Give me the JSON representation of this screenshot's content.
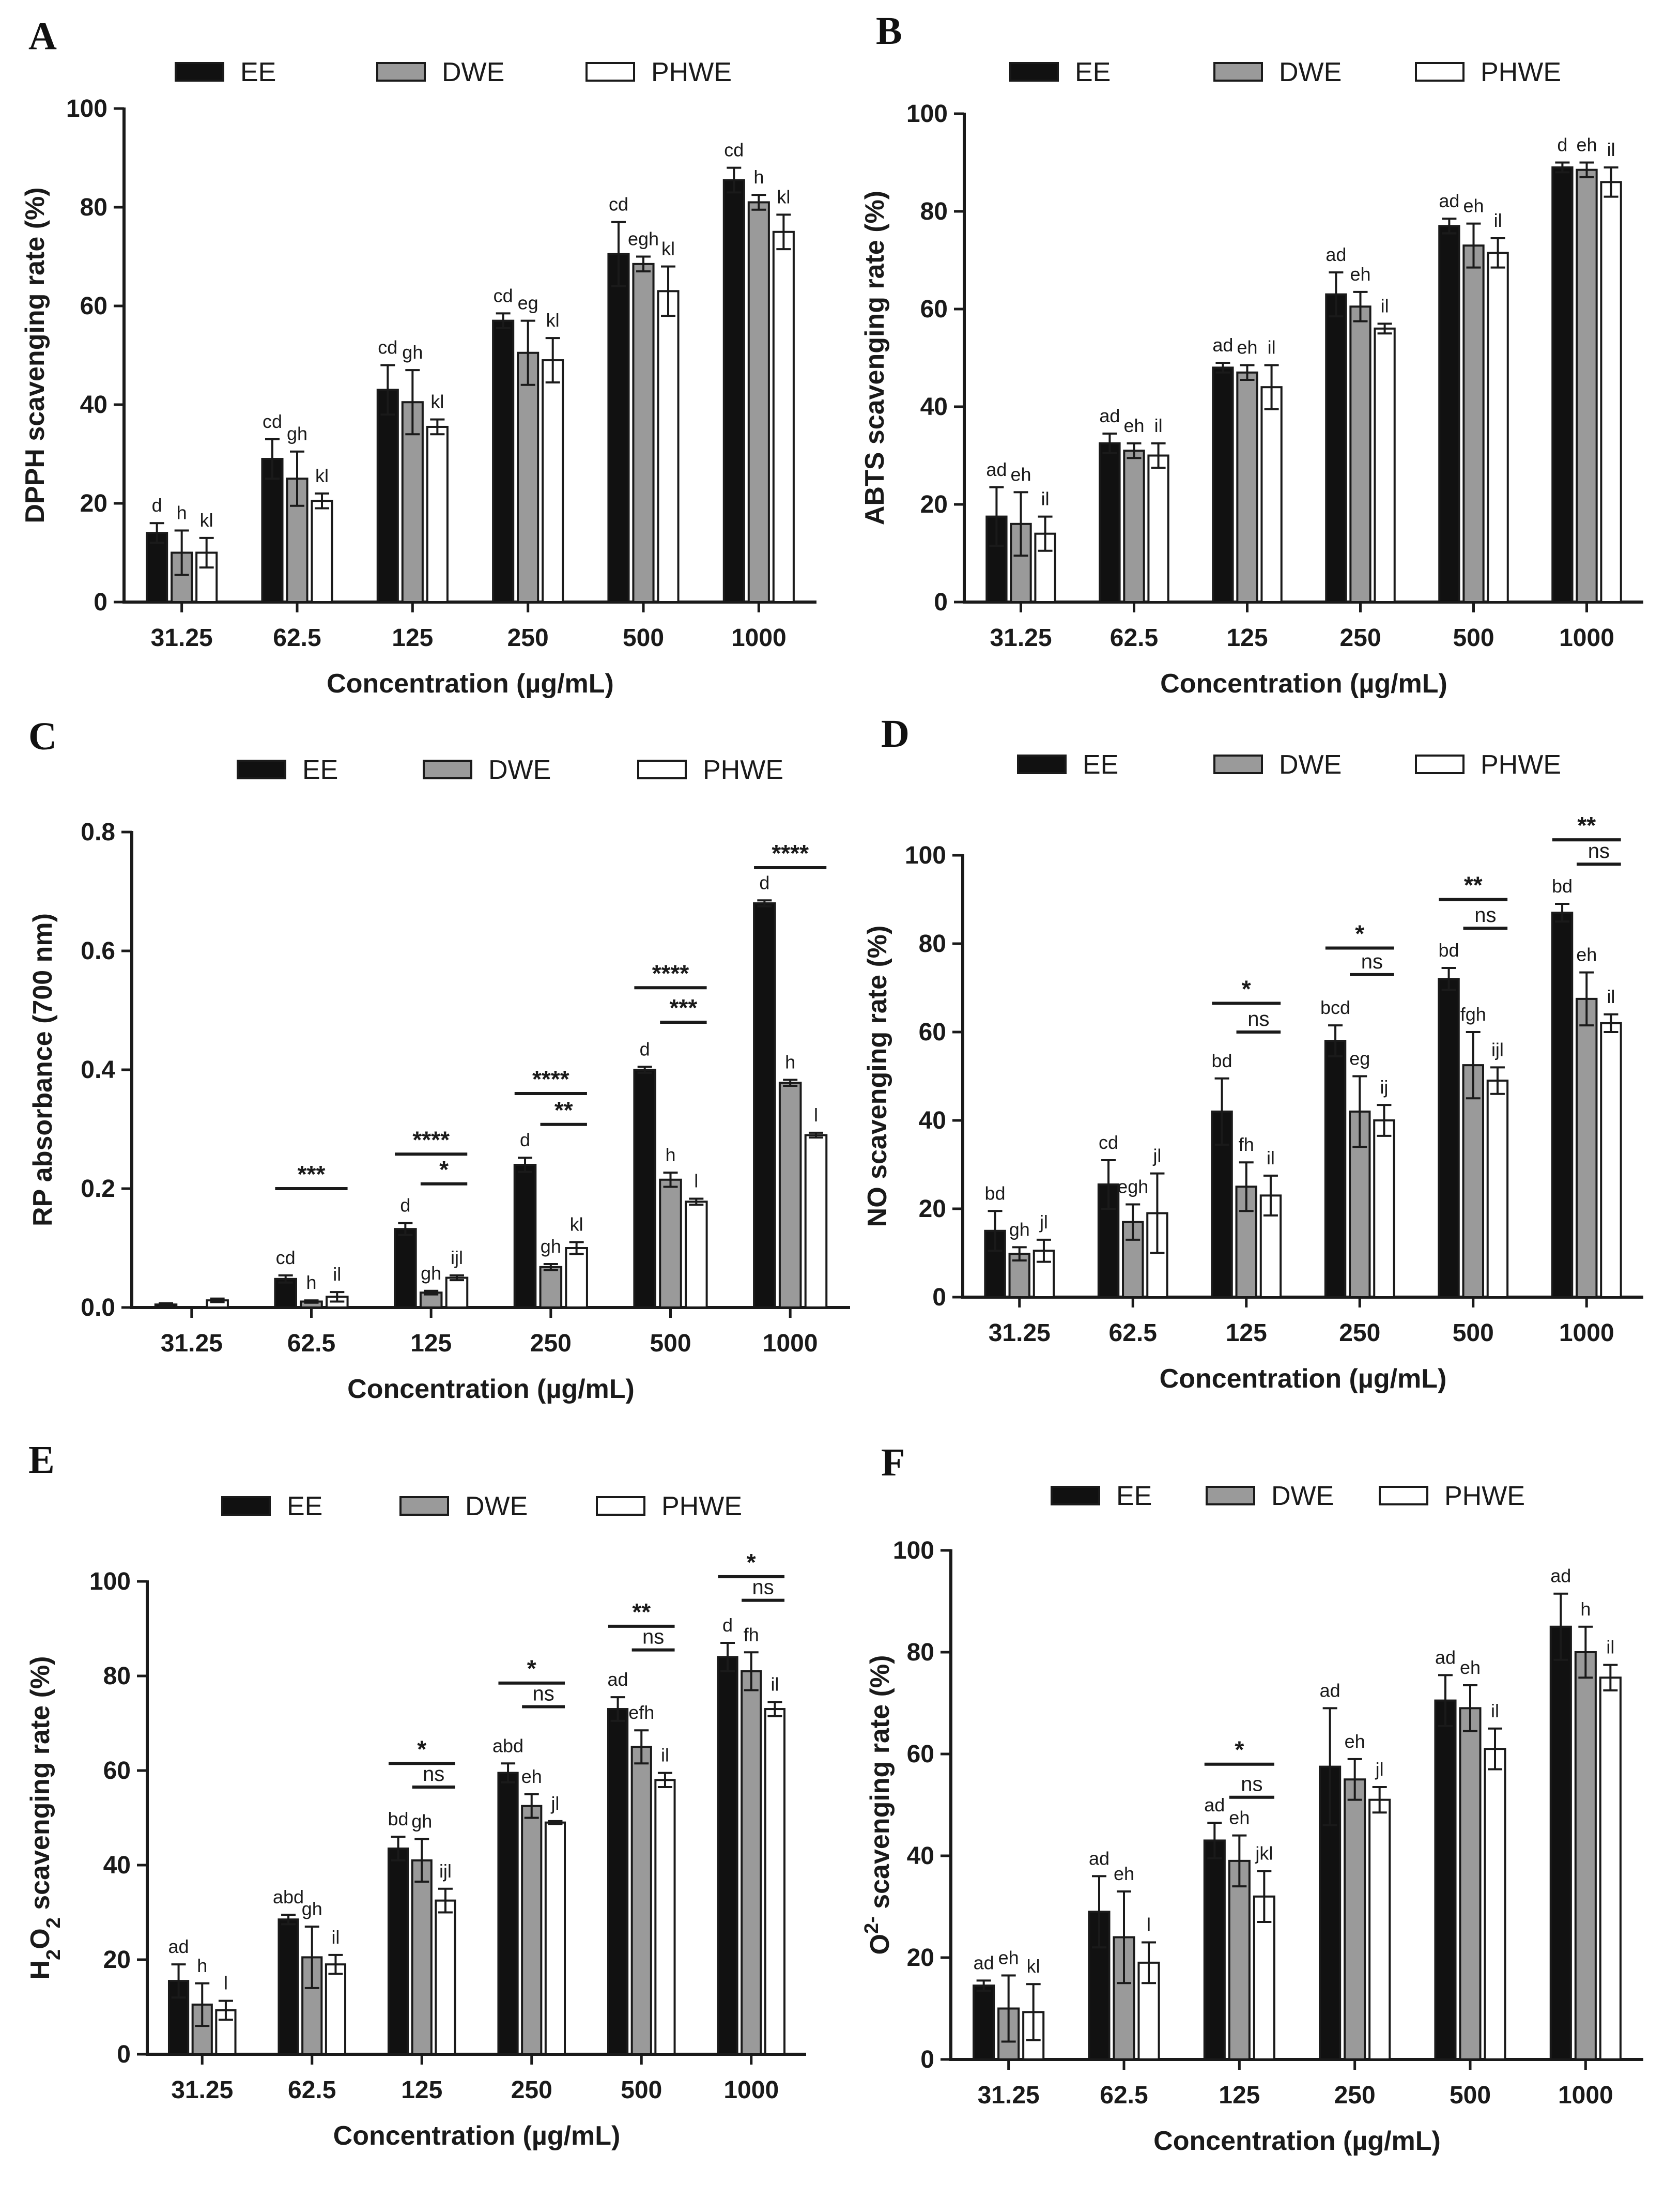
{
  "colors": {
    "EE": "#111111",
    "DWE": "#9a9a9a",
    "PHWE": "#ffffff",
    "axis": "#1a1a1a"
  },
  "chart_data": [
    {
      "panel": "A",
      "type": "bar",
      "categories": [
        "31.25",
        "62.5",
        "125",
        "250",
        "500",
        "1000"
      ],
      "xlabel": "Concentration (µg/mL)",
      "ylabel": "DPPH scavenging rate (%)",
      "ylim": [
        0,
        100
      ],
      "yticks": [
        "0",
        "20",
        "40",
        "60",
        "80",
        "100"
      ],
      "legend": [
        "EE",
        "DWE",
        "PHWE"
      ],
      "series": [
        {
          "name": "EE",
          "values": [
            14,
            29,
            43,
            57,
            70.5,
            85.5
          ],
          "errors": [
            2,
            4,
            5,
            1.5,
            6.5,
            2.5
          ],
          "labels": [
            "d",
            "cd",
            "cd",
            "cd",
            "cd",
            "cd"
          ]
        },
        {
          "name": "DWE",
          "values": [
            10,
            25,
            40.5,
            50.5,
            68.5,
            81
          ],
          "errors": [
            4.5,
            5.5,
            6.5,
            6.5,
            1.5,
            1.5
          ],
          "labels": [
            "h",
            "gh",
            "gh",
            "eg",
            "egh",
            "h"
          ]
        },
        {
          "name": "PHWE",
          "values": [
            10,
            20.5,
            35.5,
            49,
            63,
            75
          ],
          "errors": [
            3,
            1.5,
            1.5,
            4.5,
            5,
            3.5
          ],
          "labels": [
            "kl",
            "kl",
            "kl",
            "kl",
            "kl",
            "kl"
          ]
        }
      ],
      "comparisons": []
    },
    {
      "panel": "B",
      "type": "bar",
      "categories": [
        "31.25",
        "62.5",
        "125",
        "250",
        "500",
        "1000"
      ],
      "xlabel": "Concentration (µg/mL)",
      "ylabel": "ABTS scavenging rate (%)",
      "ylim": [
        0,
        100
      ],
      "yticks": [
        "0",
        "20",
        "40",
        "60",
        "80",
        "100"
      ],
      "legend": [
        "EE",
        "DWE",
        "PHWE"
      ],
      "series": [
        {
          "name": "EE",
          "values": [
            17.5,
            32.5,
            48,
            63,
            77,
            89
          ],
          "errors": [
            6,
            2,
            1,
            4.5,
            1.5,
            1
          ],
          "labels": [
            "ad",
            "ad",
            "ad",
            "ad",
            "ad",
            "d"
          ]
        },
        {
          "name": "DWE",
          "values": [
            16,
            31,
            47,
            60.5,
            73,
            88.5
          ],
          "errors": [
            6.5,
            1.5,
            1.5,
            3,
            4.5,
            1.5
          ],
          "labels": [
            "eh",
            "eh",
            "eh",
            "eh",
            "eh",
            "eh"
          ]
        },
        {
          "name": "PHWE",
          "values": [
            14,
            30,
            44,
            56,
            71.5,
            86
          ],
          "errors": [
            3.5,
            2.5,
            4.5,
            1,
            3,
            3
          ],
          "labels": [
            "il",
            "il",
            "il",
            "il",
            "il",
            "il"
          ]
        }
      ],
      "comparisons": []
    },
    {
      "panel": "C",
      "type": "bar",
      "categories": [
        "31.25",
        "62.5",
        "125",
        "250",
        "500",
        "1000"
      ],
      "xlabel": "Concentration (µg/mL)",
      "ylabel": "RP absorbance (700 nm)",
      "ylim": [
        0,
        0.8
      ],
      "yticks": [
        "0.0",
        "0.2",
        "0.4",
        "0.6",
        "0.8"
      ],
      "legend": [
        "EE",
        "DWE",
        "PHWE"
      ],
      "series": [
        {
          "name": "EE",
          "values": [
            0.005,
            0.048,
            0.132,
            0.24,
            0.4,
            0.68
          ],
          "errors": [
            0.002,
            0.006,
            0.01,
            0.012,
            0.005,
            0.005
          ],
          "labels": [
            "",
            "cd",
            "d",
            "d",
            "d",
            "d"
          ]
        },
        {
          "name": "DWE",
          "values": [
            0.0,
            0.01,
            0.025,
            0.068,
            0.215,
            0.378
          ],
          "errors": [
            0.0,
            0.002,
            0.003,
            0.005,
            0.012,
            0.005
          ],
          "labels": [
            "",
            "h",
            "gh",
            "gh",
            "h",
            "h"
          ]
        },
        {
          "name": "PHWE",
          "values": [
            0.012,
            0.018,
            0.05,
            0.1,
            0.178,
            0.29
          ],
          "errors": [
            0.003,
            0.008,
            0.004,
            0.01,
            0.005,
            0.004
          ],
          "labels": [
            "",
            "il",
            "ijl",
            "kl",
            "l",
            "l"
          ]
        }
      ],
      "comparisons": [
        {
          "cat": 1,
          "from": 0,
          "to": 2,
          "at": 0.2,
          "label": "***"
        },
        {
          "cat": 2,
          "from": 0,
          "to": 2,
          "at": 0.258,
          "label": "****"
        },
        {
          "cat": 2,
          "from": 1,
          "to": 2,
          "at": 0.208,
          "label": "*"
        },
        {
          "cat": 3,
          "from": 0,
          "to": 2,
          "at": 0.36,
          "label": "****"
        },
        {
          "cat": 3,
          "from": 1,
          "to": 2,
          "at": 0.308,
          "label": "**"
        },
        {
          "cat": 4,
          "from": 0,
          "to": 2,
          "at": 0.538,
          "label": "****"
        },
        {
          "cat": 4,
          "from": 1,
          "to": 2,
          "at": 0.48,
          "label": "***"
        },
        {
          "cat": 5,
          "from": 0,
          "to": 2,
          "at": 0.74,
          "label": "****"
        }
      ]
    },
    {
      "panel": "D",
      "type": "bar",
      "categories": [
        "31.25",
        "62.5",
        "125",
        "250",
        "500",
        "1000"
      ],
      "xlabel": "Concentration (µg/mL)",
      "ylabel": "NO scavenging rate (%)",
      "ylim": [
        0,
        100
      ],
      "yticks": [
        "0",
        "20",
        "40",
        "60",
        "80",
        "100"
      ],
      "legend": [
        "EE",
        "DWE",
        "PHWE"
      ],
      "series": [
        {
          "name": "EE",
          "values": [
            15,
            25.5,
            42,
            58,
            72,
            87
          ],
          "errors": [
            4.5,
            5.5,
            7.5,
            3.5,
            2.5,
            2
          ],
          "labels": [
            "bd",
            "cd",
            "bd",
            "bcd",
            "bd",
            "bd"
          ]
        },
        {
          "name": "DWE",
          "values": [
            9.8,
            17,
            25,
            42,
            52.5,
            67.5
          ],
          "errors": [
            1.5,
            4,
            5.5,
            8,
            7.5,
            6
          ],
          "labels": [
            "gh",
            "egh",
            "fh",
            "eg",
            "fgh",
            "eh"
          ]
        },
        {
          "name": "PHWE",
          "values": [
            10.5,
            19,
            23,
            40,
            49,
            62
          ],
          "errors": [
            2.5,
            9,
            4.5,
            3.5,
            3,
            2
          ],
          "labels": [
            "jl",
            "jl",
            "il",
            "ij",
            "ijl",
            "il"
          ]
        }
      ],
      "comparisons": [
        {
          "cat": 2,
          "from": 0,
          "to": 2,
          "at": 66.5,
          "label": "*"
        },
        {
          "cat": 2,
          "from": 1,
          "to": 2,
          "at": 60,
          "label": "ns"
        },
        {
          "cat": 3,
          "from": 0,
          "to": 2,
          "at": 79,
          "label": "*"
        },
        {
          "cat": 3,
          "from": 1,
          "to": 2,
          "at": 73,
          "label": "ns"
        },
        {
          "cat": 4,
          "from": 0,
          "to": 2,
          "at": 90,
          "label": "**"
        },
        {
          "cat": 4,
          "from": 1,
          "to": 2,
          "at": 83.5,
          "label": "ns"
        },
        {
          "cat": 5,
          "from": 0,
          "to": 2,
          "at": 103.5,
          "label": "**"
        },
        {
          "cat": 5,
          "from": 1,
          "to": 2,
          "at": 98,
          "label": "ns"
        }
      ]
    },
    {
      "panel": "E",
      "type": "bar",
      "categories": [
        "31.25",
        "62.5",
        "125",
        "250",
        "500",
        "1000"
      ],
      "xlabel": "Concentration (µg/mL)",
      "ylabel": "H2O2 scavenging rate (%)",
      "ylabel_parts": [
        "H",
        "2",
        "O",
        "2",
        " scavenging rate (%)"
      ],
      "ylim": [
        0,
        100
      ],
      "yticks": [
        "0",
        "20",
        "40",
        "60",
        "80",
        "100"
      ],
      "legend": [
        "EE",
        "DWE",
        "PHWE"
      ],
      "series": [
        {
          "name": "EE",
          "values": [
            15.5,
            28.5,
            43.5,
            59.5,
            73,
            84
          ],
          "errors": [
            3.5,
            1,
            2.5,
            2,
            2.5,
            3
          ],
          "labels": [
            "ad",
            "abd",
            "bd",
            "abd",
            "ad",
            "d"
          ]
        },
        {
          "name": "DWE",
          "values": [
            10.5,
            20.5,
            41,
            52.5,
            65,
            81
          ],
          "errors": [
            4.5,
            6.5,
            4.5,
            2.5,
            3.5,
            4
          ],
          "labels": [
            "h",
            "gh",
            "gh",
            "eh",
            "efh",
            "fh"
          ]
        },
        {
          "name": "PHWE",
          "values": [
            9.3,
            19,
            32.5,
            49,
            58,
            73
          ],
          "errors": [
            2,
            2,
            2.5,
            0.3,
            1.5,
            1.5
          ],
          "labels": [
            "l",
            "il",
            "ijl",
            "jl",
            "il",
            "il"
          ]
        }
      ],
      "comparisons": [
        {
          "cat": 2,
          "from": 0,
          "to": 2,
          "at": 61.5,
          "label": "*"
        },
        {
          "cat": 2,
          "from": 1,
          "to": 2,
          "at": 56.5,
          "label": "ns"
        },
        {
          "cat": 3,
          "from": 0,
          "to": 2,
          "at": 78.5,
          "label": "*"
        },
        {
          "cat": 3,
          "from": 1,
          "to": 2,
          "at": 73.5,
          "label": "ns"
        },
        {
          "cat": 4,
          "from": 0,
          "to": 2,
          "at": 90.5,
          "label": "**"
        },
        {
          "cat": 4,
          "from": 1,
          "to": 2,
          "at": 85.5,
          "label": "ns"
        },
        {
          "cat": 5,
          "from": 0,
          "to": 2,
          "at": 101,
          "label": "*"
        },
        {
          "cat": 5,
          "from": 1,
          "to": 2,
          "at": 96,
          "label": "ns"
        }
      ]
    },
    {
      "panel": "F",
      "type": "bar",
      "categories": [
        "31.25",
        "62.5",
        "125",
        "250",
        "500",
        "1000"
      ],
      "xlabel": "Concentration (µg/mL)",
      "ylabel": "O2- scavenging rate (%)",
      "ylabel_parts": [
        "O",
        "2-",
        " scavenging rate (%)"
      ],
      "ylim": [
        0,
        100
      ],
      "yticks": [
        "0",
        "20",
        "40",
        "60",
        "80",
        "100"
      ],
      "legend": [
        "EE",
        "DWE",
        "PHWE"
      ],
      "series": [
        {
          "name": "EE",
          "values": [
            14.5,
            29,
            43,
            57.5,
            70.5,
            85
          ],
          "errors": [
            1,
            7,
            3.5,
            11.5,
            5,
            6.5
          ],
          "labels": [
            "ad",
            "ad",
            "ad",
            "ad",
            "ad",
            "ad"
          ]
        },
        {
          "name": "DWE",
          "values": [
            10,
            24,
            39,
            55,
            69,
            80
          ],
          "errors": [
            6.5,
            9,
            5,
            4,
            4.5,
            5
          ],
          "labels": [
            "eh",
            "eh",
            "eh",
            "eh",
            "eh",
            "h"
          ]
        },
        {
          "name": "PHWE",
          "values": [
            9.3,
            19,
            32,
            51,
            61,
            75
          ],
          "errors": [
            5.5,
            4,
            5,
            2.5,
            4,
            2.5
          ],
          "labels": [
            "kl",
            "l",
            "jkl",
            "jl",
            "il",
            "il"
          ]
        }
      ],
      "comparisons": [
        {
          "cat": 2,
          "from": 0,
          "to": 2,
          "at": 58,
          "label": "*"
        },
        {
          "cat": 2,
          "from": 1,
          "to": 2,
          "at": 51.5,
          "label": "ns"
        }
      ]
    }
  ]
}
